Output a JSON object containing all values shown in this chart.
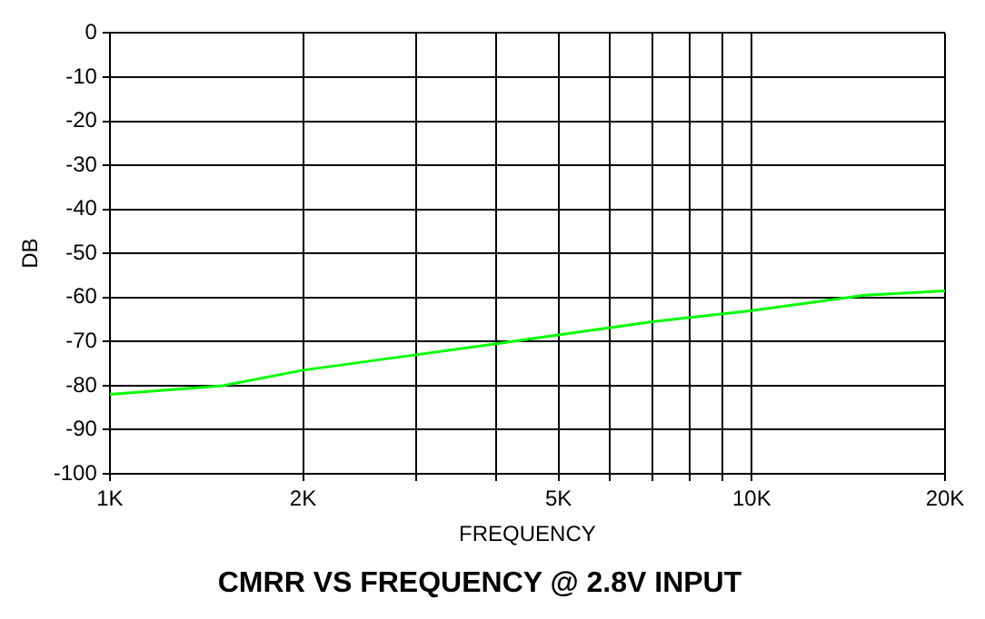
{
  "chart_data": {
    "type": "line",
    "title": "CMRR VS FREQUENCY @ 2.8V INPUT",
    "xlabel": "FREQUENCY",
    "ylabel": "DB",
    "log": "x",
    "grid": true,
    "legend": false,
    "marker": "none",
    "line_style": "solid",
    "xlim": [
      1000,
      20000
    ],
    "xticks": [
      {
        "value": 1000,
        "label": "1K"
      },
      {
        "value": 2000,
        "label": "2K"
      },
      {
        "value": 3000,
        "label": null
      },
      {
        "value": 4000,
        "label": null
      },
      {
        "value": 5000,
        "label": "5K"
      },
      {
        "value": 6000,
        "label": null
      },
      {
        "value": 7000,
        "label": null
      },
      {
        "value": 8000,
        "label": null
      },
      {
        "value": 9000,
        "label": null
      },
      {
        "value": 10000,
        "label": "10K"
      },
      {
        "value": 20000,
        "label": "20K"
      }
    ],
    "ylim": [
      -100,
      0
    ],
    "yticks": [
      -100,
      -90,
      -80,
      -70,
      -60,
      -50,
      -40,
      -30,
      -20,
      -10,
      0
    ],
    "series": [
      {
        "color": "#00ff00",
        "x": [
          1000,
          1500,
          2000,
          3000,
          4000,
          5000,
          7000,
          10000,
          15000,
          20000
        ],
        "values": [
          -82,
          -80,
          -76.5,
          -73,
          -70.5,
          -68.5,
          -65.5,
          -63,
          -59.5,
          -58.5
        ]
      }
    ]
  }
}
